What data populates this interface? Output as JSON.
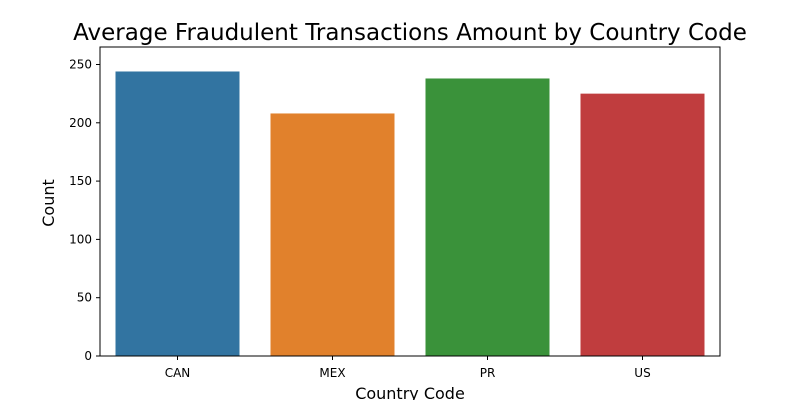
{
  "chart_data": {
    "type": "bar",
    "title": "Average Fraudulent Transactions Amount by Country Code",
    "xlabel": "Country Code",
    "ylabel": "Count",
    "categories": [
      "CAN",
      "MEX",
      "PR",
      "US"
    ],
    "values": [
      244,
      208,
      238,
      225
    ],
    "colors": [
      "#3274a1",
      "#e1812c",
      "#3a923a",
      "#c03d3e"
    ],
    "ylim": [
      0,
      265
    ],
    "yticks": [
      0,
      50,
      100,
      150,
      200,
      250
    ],
    "grid": false,
    "legend": "none"
  }
}
